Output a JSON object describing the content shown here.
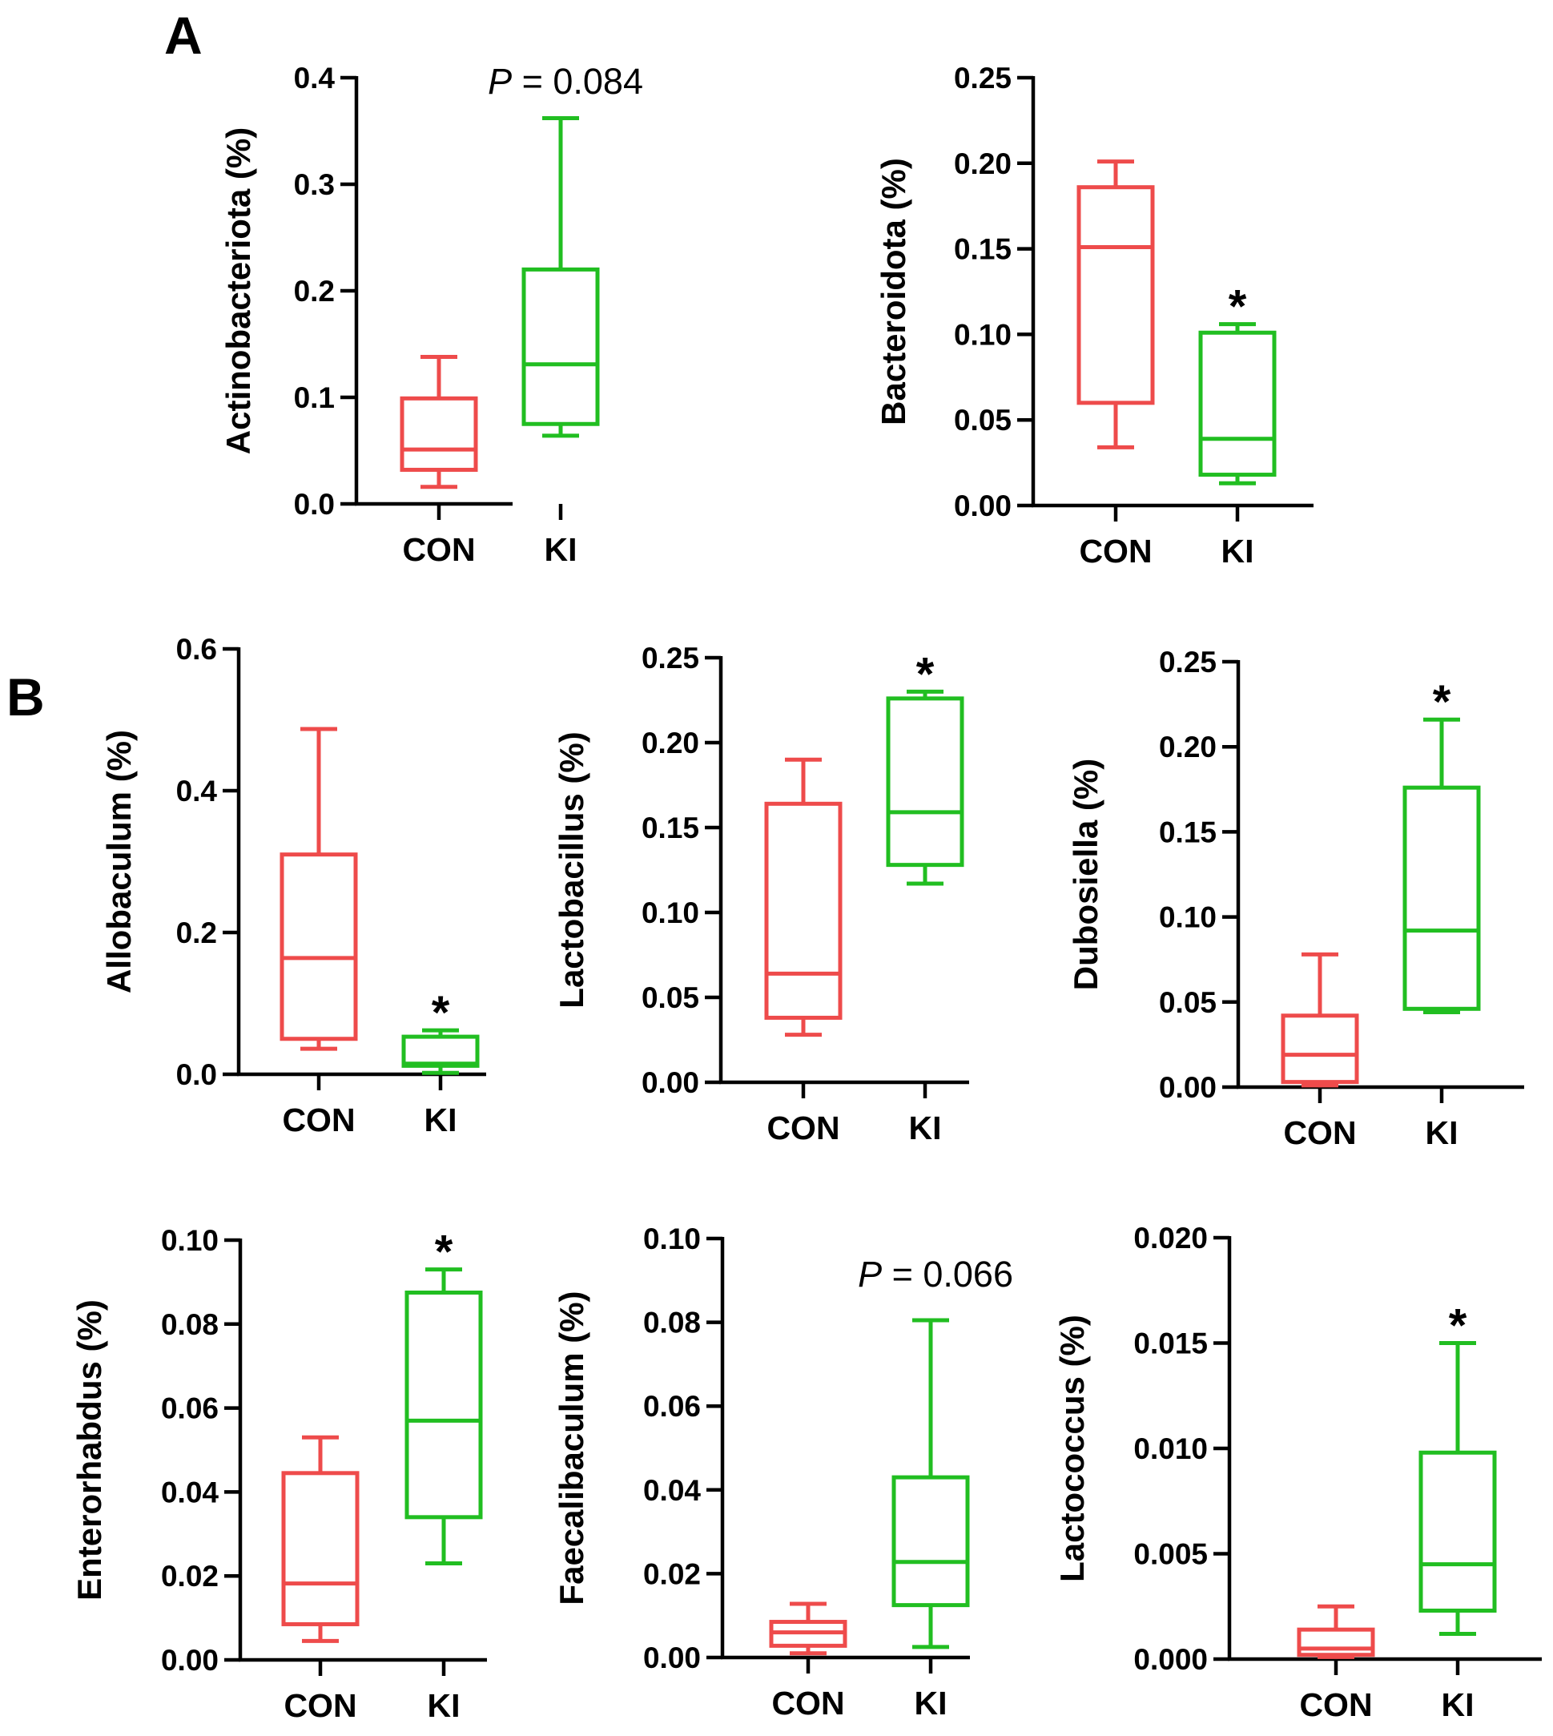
{
  "panels": {
    "a": "A",
    "b": "B"
  },
  "colors": {
    "con": "#ee4b4b",
    "ki": "#21be21",
    "axis": "#000000"
  },
  "chart_data": [
    {
      "type": "box",
      "panel": "A",
      "title": "",
      "ylabel": "Actinobacteriota (%)",
      "ylim": [
        0,
        0.4
      ],
      "yticks": [
        "0.0",
        "0.1",
        "0.2",
        "0.3",
        "0.4"
      ],
      "categories": [
        "CON",
        "KI"
      ],
      "boxes": [
        {
          "group": "CON",
          "min": 0.016,
          "q1": 0.032,
          "median": 0.051,
          "q3": 0.099,
          "max": 0.138
        },
        {
          "group": "KI",
          "min": 0.064,
          "q1": 0.075,
          "median": 0.131,
          "q3": 0.22,
          "max": 0.362
        }
      ],
      "annotation": {
        "type": "p",
        "italic": "P",
        "text": " = 0.084"
      }
    },
    {
      "type": "box",
      "panel": "A",
      "title": "",
      "ylabel": "Bacteroidota (%)",
      "ylim": [
        0,
        0.25
      ],
      "yticks": [
        "0.00",
        "0.05",
        "0.10",
        "0.15",
        "0.20",
        "0.25"
      ],
      "categories": [
        "CON",
        "KI"
      ],
      "boxes": [
        {
          "group": "CON",
          "min": 0.034,
          "q1": 0.06,
          "median": 0.151,
          "q3": 0.186,
          "max": 0.201
        },
        {
          "group": "KI",
          "min": 0.013,
          "q1": 0.018,
          "median": 0.039,
          "q3": 0.101,
          "max": 0.106
        }
      ],
      "annotation": {
        "type": "star",
        "text": "*"
      }
    },
    {
      "type": "box",
      "panel": "B",
      "title": "",
      "ylabel": "Allobaculum (%)",
      "ylim": [
        0,
        0.6
      ],
      "yticks": [
        "0.0",
        "0.2",
        "0.4",
        "0.6"
      ],
      "categories": [
        "CON",
        "KI"
      ],
      "boxes": [
        {
          "group": "CON",
          "min": 0.036,
          "q1": 0.05,
          "median": 0.164,
          "q3": 0.31,
          "max": 0.487
        },
        {
          "group": "KI",
          "min": 0.002,
          "q1": 0.012,
          "median": 0.015,
          "q3": 0.053,
          "max": 0.062
        }
      ],
      "annotation": {
        "type": "star",
        "text": "*"
      }
    },
    {
      "type": "box",
      "panel": "B",
      "title": "",
      "ylabel": "Lactobacillus (%)",
      "ylim": [
        0,
        0.25
      ],
      "yticks": [
        "0.00",
        "0.05",
        "0.10",
        "0.15",
        "0.20",
        "0.25"
      ],
      "categories": [
        "CON",
        "KI"
      ],
      "boxes": [
        {
          "group": "CON",
          "min": 0.028,
          "q1": 0.038,
          "median": 0.064,
          "q3": 0.164,
          "max": 0.19
        },
        {
          "group": "KI",
          "min": 0.117,
          "q1": 0.128,
          "median": 0.159,
          "q3": 0.226,
          "max": 0.23
        }
      ],
      "annotation": {
        "type": "star",
        "text": "*"
      }
    },
    {
      "type": "box",
      "panel": "B",
      "title": "",
      "ylabel": "Dubosiella (%)",
      "ylim": [
        0,
        0.25
      ],
      "yticks": [
        "0.00",
        "0.05",
        "0.10",
        "0.15",
        "0.20",
        "0.25"
      ],
      "categories": [
        "CON",
        "KI"
      ],
      "boxes": [
        {
          "group": "CON",
          "min": 0.001,
          "q1": 0.003,
          "median": 0.019,
          "q3": 0.042,
          "max": 0.078
        },
        {
          "group": "KI",
          "min": 0.044,
          "q1": 0.046,
          "median": 0.092,
          "q3": 0.176,
          "max": 0.216
        }
      ],
      "annotation": {
        "type": "star",
        "text": "*"
      }
    },
    {
      "type": "box",
      "panel": "B",
      "title": "",
      "ylabel": "Enterorhabdus (%)",
      "ylim": [
        0,
        0.1
      ],
      "yticks": [
        "0.00",
        "0.02",
        "0.04",
        "0.06",
        "0.08",
        "0.10"
      ],
      "categories": [
        "CON",
        "KI"
      ],
      "boxes": [
        {
          "group": "CON",
          "min": 0.0045,
          "q1": 0.0085,
          "median": 0.0182,
          "q3": 0.0445,
          "max": 0.053
        },
        {
          "group": "KI",
          "min": 0.023,
          "q1": 0.034,
          "median": 0.057,
          "q3": 0.0875,
          "max": 0.093
        }
      ],
      "annotation": {
        "type": "star",
        "text": "*"
      }
    },
    {
      "type": "box",
      "panel": "B",
      "title": "",
      "ylabel": "Faecalibaculum (%)",
      "ylim": [
        0,
        0.1
      ],
      "yticks": [
        "0.00",
        "0.02",
        "0.04",
        "0.06",
        "0.08",
        "0.10"
      ],
      "categories": [
        "CON",
        "KI"
      ],
      "boxes": [
        {
          "group": "CON",
          "min": 0.001,
          "q1": 0.0028,
          "median": 0.006,
          "q3": 0.0085,
          "max": 0.0128
        },
        {
          "group": "KI",
          "min": 0.0025,
          "q1": 0.0125,
          "median": 0.0228,
          "q3": 0.043,
          "max": 0.0805
        }
      ],
      "annotation": {
        "type": "p",
        "italic": "P",
        "text": " = 0.066"
      }
    },
    {
      "type": "box",
      "panel": "B",
      "title": "",
      "ylabel": "Lactococcus (%)",
      "ylim": [
        0,
        0.02
      ],
      "yticks": [
        "0.000",
        "0.005",
        "0.010",
        "0.015",
        "0.020"
      ],
      "categories": [
        "CON",
        "KI"
      ],
      "boxes": [
        {
          "group": "CON",
          "min": 0.0001,
          "q1": 0.0002,
          "median": 0.0005,
          "q3": 0.0014,
          "max": 0.0025
        },
        {
          "group": "KI",
          "min": 0.0012,
          "q1": 0.0023,
          "median": 0.0045,
          "q3": 0.0098,
          "max": 0.015
        }
      ],
      "annotation": {
        "type": "star",
        "text": "*"
      }
    }
  ]
}
